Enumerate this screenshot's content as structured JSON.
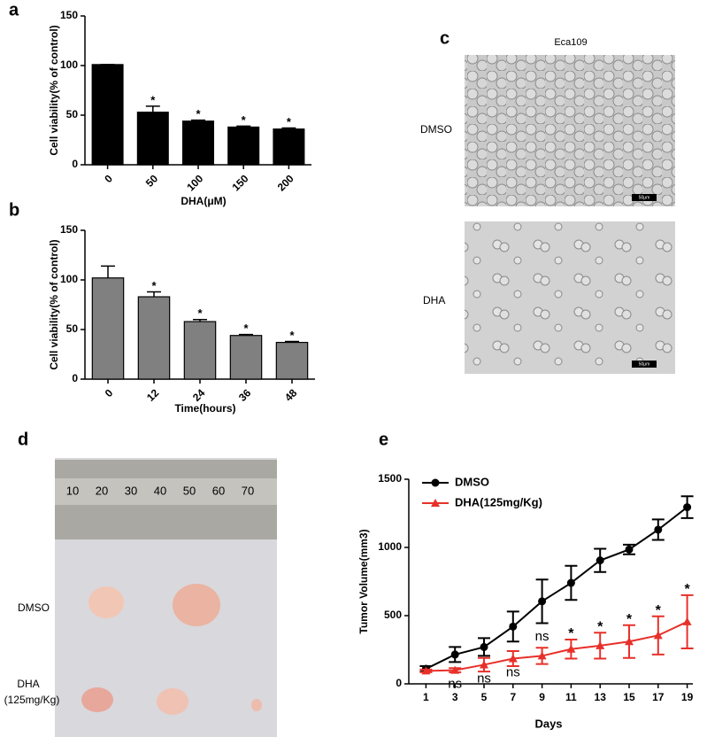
{
  "chart_data": [
    {
      "type": "bar",
      "panel_label": "a",
      "ylabel": "Cell viability(% of control)",
      "xlabel": "DHA(μM)",
      "categories": [
        "0",
        "50",
        "100",
        "150",
        "200"
      ],
      "values": [
        101,
        53,
        44,
        38,
        36
      ],
      "errors": [
        0,
        6,
        1,
        1,
        1
      ],
      "annotations": [
        null,
        "*",
        "*",
        "*",
        "*"
      ],
      "color": "#000000",
      "ylim": [
        0,
        150
      ],
      "yticks": [
        0,
        50,
        100,
        150
      ]
    },
    {
      "type": "bar",
      "panel_label": "b",
      "ylabel": "Cell viability(% of control)",
      "xlabel": "Time(hours)",
      "categories": [
        "0",
        "12",
        "24",
        "36",
        "48"
      ],
      "values": [
        102,
        83,
        58,
        44,
        37
      ],
      "errors": [
        12,
        5,
        2,
        1,
        1
      ],
      "annotations": [
        null,
        "*",
        "*",
        "*",
        "*"
      ],
      "color": "#808080",
      "ylim": [
        0,
        150
      ],
      "yticks": [
        0,
        50,
        100,
        150
      ]
    },
    {
      "type": "line",
      "panel_label": "e",
      "ylabel": "Tumor Volume(mm3)",
      "xlabel": "Days",
      "x": [
        1,
        3,
        5,
        7,
        9,
        11,
        13,
        15,
        17,
        19
      ],
      "xlim": [
        0,
        20
      ],
      "xticks": [
        1,
        3,
        5,
        7,
        9,
        11,
        13,
        15,
        17,
        19
      ],
      "ylim": [
        0,
        1500
      ],
      "yticks": [
        0,
        500,
        1000,
        1500
      ],
      "series": [
        {
          "name": "DMSO",
          "color": "#000000",
          "marker": "circle",
          "values": [
            110,
            215,
            270,
            420,
            605,
            740,
            905,
            985,
            1130,
            1295
          ],
          "errors": [
            20,
            55,
            65,
            110,
            160,
            125,
            85,
            35,
            75,
            80
          ]
        },
        {
          "name": "DHA(125mg/Kg)",
          "color": "#e8302a",
          "marker": "triangle",
          "values": [
            95,
            100,
            140,
            185,
            205,
            255,
            280,
            310,
            355,
            455
          ],
          "errors": [
            10,
            15,
            50,
            55,
            60,
            70,
            95,
            120,
            140,
            195
          ]
        }
      ],
      "annotations": [
        {
          "x": 3,
          "text": "ns"
        },
        {
          "x": 5,
          "text": "ns"
        },
        {
          "x": 7,
          "text": "ns"
        },
        {
          "x": 9,
          "text": "ns"
        },
        {
          "x": 11,
          "text": "*"
        },
        {
          "x": 13,
          "text": "*"
        },
        {
          "x": 15,
          "text": "*"
        },
        {
          "x": 17,
          "text": "*"
        },
        {
          "x": 19,
          "text": "*"
        }
      ]
    }
  ],
  "panels": {
    "c": {
      "panel_label": "c",
      "title": "Eca109",
      "rows": [
        "DMSO",
        "DHA"
      ],
      "scale_bar": "50μm"
    },
    "d": {
      "panel_label": "d",
      "rows": [
        "DMSO",
        "DHA",
        "(125mg/Kg)"
      ],
      "ruler_labels": [
        "10",
        "20",
        "30",
        "40",
        "50",
        "60",
        "70"
      ]
    }
  }
}
